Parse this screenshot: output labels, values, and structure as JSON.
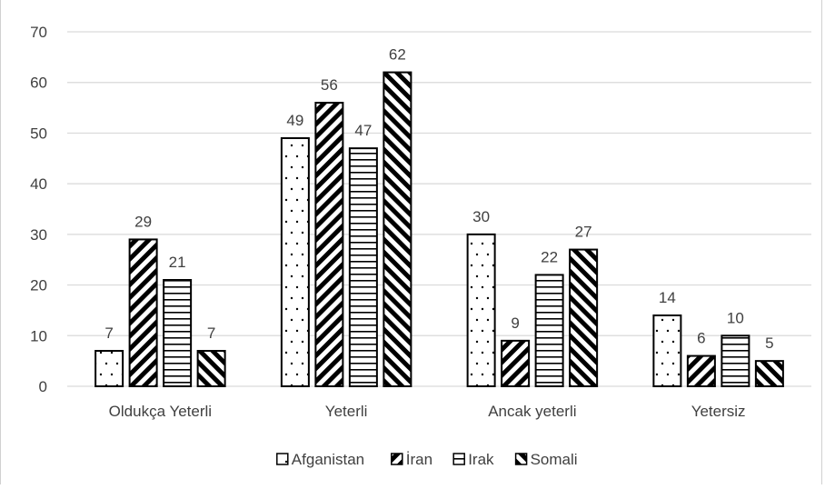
{
  "chart_data": {
    "type": "bar",
    "categories": [
      "Oldukça Yeterli",
      "Yeterli",
      "Ancak yeterli",
      "Yetersiz"
    ],
    "series": [
      {
        "name": "Afganistan",
        "values": [
          7,
          49,
          30,
          14
        ],
        "pattern": "dots"
      },
      {
        "name": "İran",
        "values": [
          29,
          56,
          9,
          6
        ],
        "pattern": "diagonal-back"
      },
      {
        "name": "Irak",
        "values": [
          21,
          47,
          22,
          10
        ],
        "pattern": "horizontal"
      },
      {
        "name": "Somali",
        "values": [
          7,
          62,
          27,
          5
        ],
        "pattern": "diagonal-forward"
      }
    ],
    "yticks": [
      "0",
      "10",
      "20",
      "30",
      "40",
      "50",
      "60",
      "70"
    ],
    "ylim": [
      0,
      70
    ],
    "grid": true,
    "legend": "bottom",
    "data_labels": true,
    "colors": {
      "bar_stroke": "#000000",
      "bar_fill": "#ffffff",
      "grid": "#d9d9d9",
      "text": "#404040"
    }
  }
}
